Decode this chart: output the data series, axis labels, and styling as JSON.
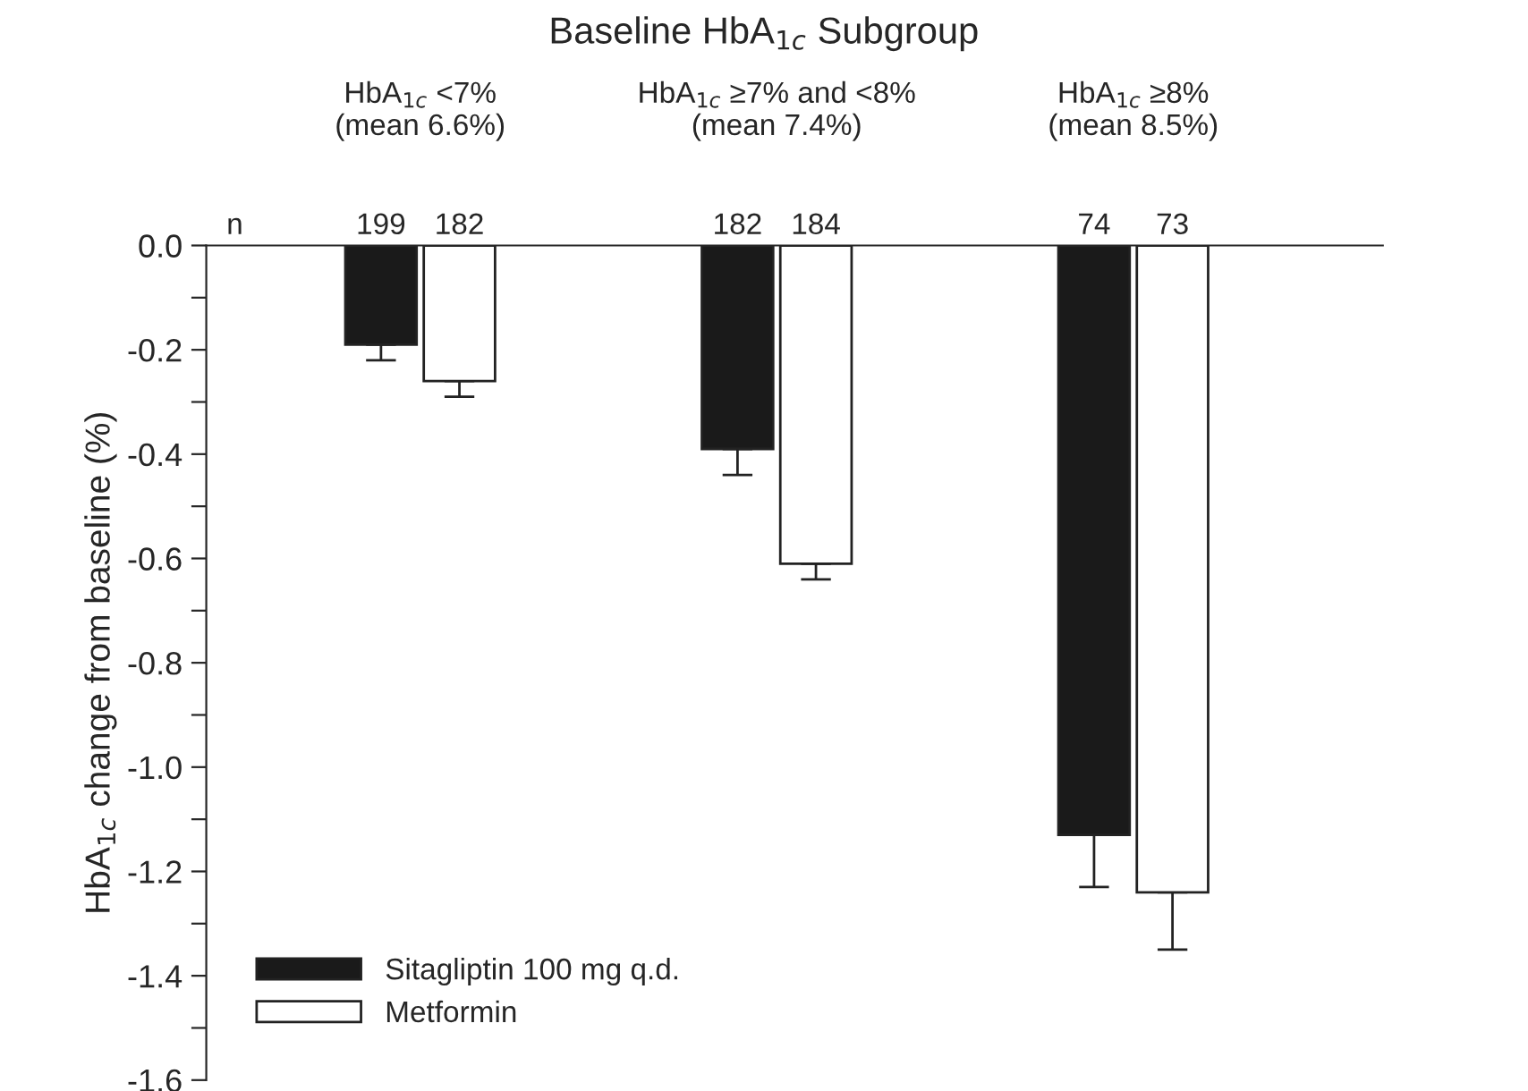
{
  "chart_data": {
    "type": "bar",
    "title": "Baseline HbA$_{1c}$ Subgroup",
    "ylabel": "HbA$_{1c}$ change from baseline (%)",
    "categories": [
      "HbA$_{1c}$ <7%\n(mean 6.6%)",
      "HbA$_{1c}$ ≥7% and <8%\n(mean 7.4%)",
      "HbA$_{1c}$ ≥8%\n(mean 8.5%)"
    ],
    "series": [
      {
        "name": "Sitagliptin 100 mg q.d.",
        "color": "#1a1a1a",
        "values": [
          -0.19,
          -0.39,
          -1.13
        ],
        "errors": [
          [
            -0.22,
            -0.19
          ],
          [
            -0.44,
            -0.39
          ],
          [
            -1.23,
            -1.13
          ]
        ]
      },
      {
        "name": "Metformin",
        "color": "#ffffff",
        "values": [
          -0.26,
          -0.61,
          -1.24
        ],
        "errors": [
          [
            -0.29,
            -0.26
          ],
          [
            -0.64,
            -0.61
          ],
          [
            -1.35,
            -1.24
          ]
        ]
      }
    ],
    "annotations": [
      "n",
      "199",
      "182",
      "182",
      "184",
      "74",
      "73"
    ],
    "ylim": [
      -1.6,
      0
    ],
    "yticks": [
      {
        "value": 0,
        "label": "0.0"
      },
      {
        "value": -0.1,
        "label": null
      },
      {
        "value": -0.2,
        "label": "-0.2"
      },
      {
        "value": -0.3,
        "label": null
      },
      {
        "value": -0.4,
        "label": "-0.4"
      },
      {
        "value": -0.5,
        "label": null
      },
      {
        "value": -0.6,
        "label": "-0.6"
      },
      {
        "value": -0.7,
        "label": null
      },
      {
        "value": -0.8,
        "label": "-0.8"
      },
      {
        "value": -0.9,
        "label": null
      },
      {
        "value": -1.0,
        "label": "-1.0"
      },
      {
        "value": -1.1,
        "label": null
      },
      {
        "value": -1.2,
        "label": "-1.2"
      },
      {
        "value": -1.3,
        "label": null
      },
      {
        "value": -1.4,
        "label": "-1.4"
      },
      {
        "value": -1.5,
        "label": null
      },
      {
        "value": -1.6,
        "label": "-1.6"
      }
    ],
    "grid": false,
    "legend": "bottom left"
  }
}
